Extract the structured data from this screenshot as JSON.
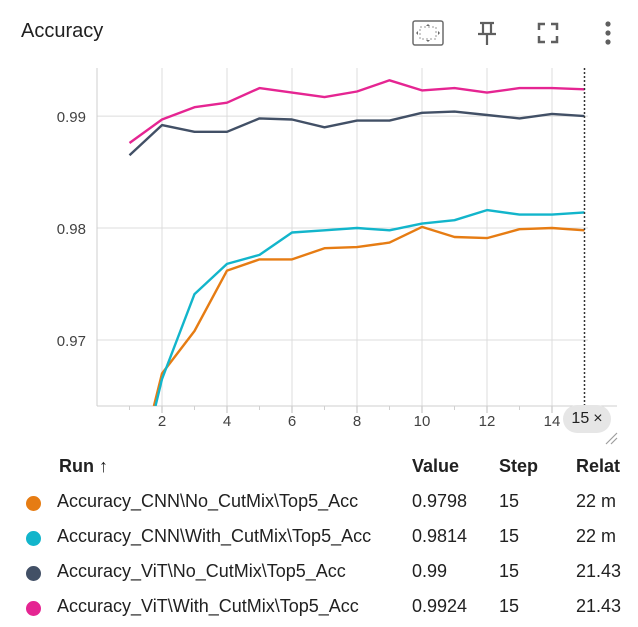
{
  "header": {
    "title": "Accuracy",
    "icons": [
      "fit-domain-icon",
      "pin-icon",
      "fullscreen-icon",
      "more-vert-icon"
    ]
  },
  "chart_data": {
    "type": "line",
    "title": "Accuracy",
    "xlabel": "",
    "ylabel": "",
    "xlim": [
      0,
      16
    ],
    "ylim": [
      0.9641,
      0.9943
    ],
    "x_ticks": [
      "2",
      "4",
      "6",
      "8",
      "10",
      "12",
      "14"
    ],
    "y_ticks": [
      "0.97",
      "0.98",
      "0.99"
    ],
    "grid": true,
    "hover_step": 15,
    "series": [
      {
        "name": "Accuracy_CNN\\No_CutMix\\Top5_Acc",
        "color": "#e67c13",
        "x": [
          1.75,
          2,
          3,
          4,
          5,
          6,
          7,
          8,
          9,
          10,
          11,
          12,
          13,
          14,
          15
        ],
        "y": [
          0.9641,
          0.967,
          0.9708,
          0.9762,
          0.9772,
          0.9772,
          0.9782,
          0.9783,
          0.9787,
          0.9801,
          0.9792,
          0.9791,
          0.9799,
          0.98,
          0.9798
        ]
      },
      {
        "name": "Accuracy_CNN\\With_CutMix\\Top5_Acc",
        "color": "#12b5cb",
        "x": [
          1.8,
          2,
          3,
          4,
          5,
          6,
          7,
          8,
          9,
          10,
          11,
          12,
          13,
          14,
          15
        ],
        "y": [
          0.9641,
          0.9665,
          0.9741,
          0.9768,
          0.9776,
          0.9796,
          0.9798,
          0.98,
          0.9798,
          0.9804,
          0.9807,
          0.9816,
          0.9812,
          0.9812,
          0.9814
        ]
      },
      {
        "name": "Accuracy_ViT\\No_CutMix\\Top5_Acc",
        "color": "#425066",
        "x": [
          1,
          2,
          3,
          4,
          5,
          6,
          7,
          8,
          9,
          10,
          11,
          12,
          13,
          14,
          15
        ],
        "y": [
          0.9865,
          0.9892,
          0.9886,
          0.9886,
          0.9898,
          0.9897,
          0.989,
          0.9896,
          0.9896,
          0.9903,
          0.9904,
          0.9901,
          0.9898,
          0.9902,
          0.99
        ]
      },
      {
        "name": "Accuracy_ViT\\With_CutMix\\Top5_Acc",
        "color": "#e52592",
        "x": [
          1,
          2,
          3,
          4,
          5,
          6,
          7,
          8,
          9,
          10,
          11,
          12,
          13,
          14,
          15
        ],
        "y": [
          0.9876,
          0.9897,
          0.9908,
          0.9912,
          0.9925,
          0.9921,
          0.9917,
          0.9922,
          0.9932,
          0.9923,
          0.9925,
          0.9921,
          0.9925,
          0.9925,
          0.9924
        ]
      }
    ]
  },
  "step_badge": {
    "label": "15",
    "close": "×"
  },
  "legend_table": {
    "headers": {
      "run": "Run ↑",
      "value": "Value",
      "step": "Step",
      "relative": "Relat"
    },
    "rows": [
      {
        "color": "#e67c13",
        "run": "Accuracy_CNN\\No_CutMix\\Top5_Acc",
        "value": "0.9798",
        "step": "15",
        "relative": "22 m"
      },
      {
        "color": "#12b5cb",
        "run": "Accuracy_CNN\\With_CutMix\\Top5_Acc",
        "value": "0.9814",
        "step": "15",
        "relative": "22 m"
      },
      {
        "color": "#425066",
        "run": "Accuracy_ViT\\No_CutMix\\Top5_Acc",
        "value": "0.99",
        "step": "15",
        "relative": "21.43"
      },
      {
        "color": "#e52592",
        "run": "Accuracy_ViT\\With_CutMix\\Top5_Acc",
        "value": "0.9924",
        "step": "15",
        "relative": "21.43"
      }
    ]
  }
}
